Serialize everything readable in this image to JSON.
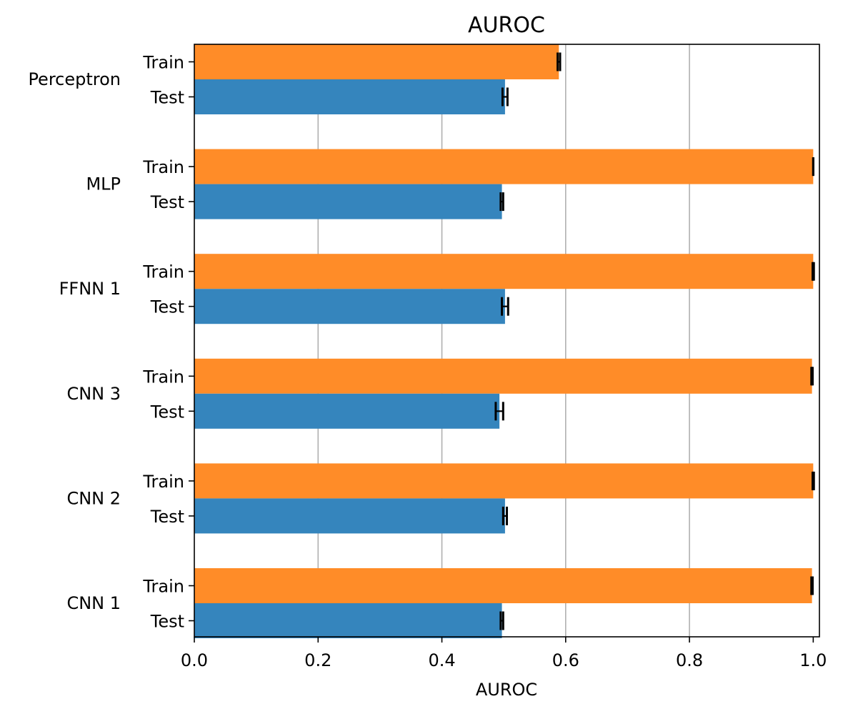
{
  "chart_data": {
    "type": "bar",
    "orientation": "horizontal",
    "title": "AUROC",
    "xlabel": "AUROC",
    "ylabel": "",
    "xlim": [
      0.0,
      1.01
    ],
    "xticks": [
      "0.0",
      "0.2",
      "0.4",
      "0.6",
      "0.8",
      "1.0"
    ],
    "grid": "vertical",
    "legend": "none",
    "groups": [
      "Perceptron",
      "MLP",
      "FFNN 1",
      "CNN 3",
      "CNN 2",
      "CNN 1"
    ],
    "bar_labels": [
      "Train",
      "Test"
    ],
    "series": [
      {
        "name": "Train",
        "color": "#ff8c28",
        "values": [
          0.589,
          1.0,
          1.0,
          0.998,
          1.0,
          0.998
        ],
        "errors": [
          0.002,
          0.0,
          0.001,
          0.001,
          0.001,
          0.001
        ]
      },
      {
        "name": "Test",
        "color": "#3585bd",
        "values": [
          0.502,
          0.497,
          0.502,
          0.493,
          0.502,
          0.497
        ],
        "errors": [
          0.004,
          0.002,
          0.005,
          0.006,
          0.003,
          0.002
        ]
      }
    ]
  }
}
